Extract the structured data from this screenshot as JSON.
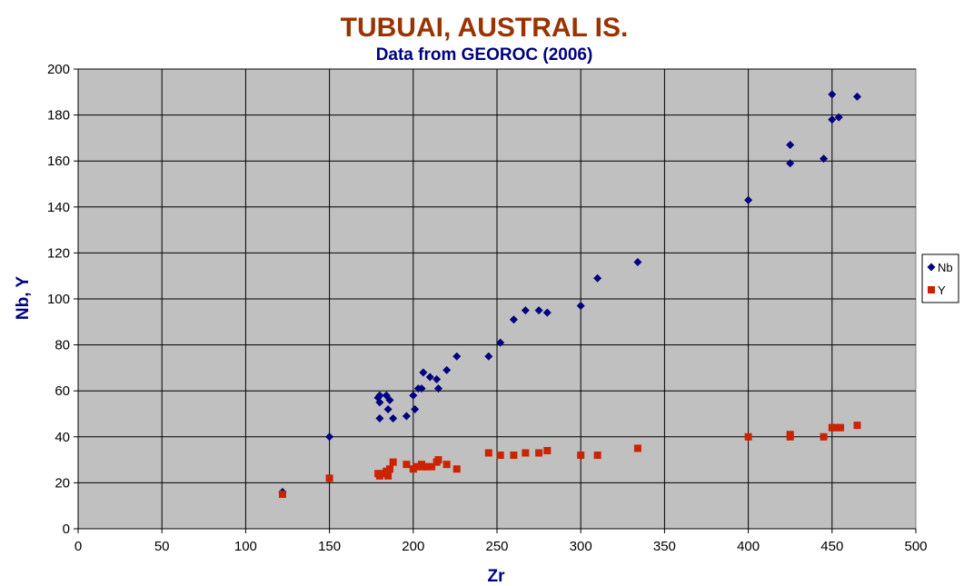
{
  "chart_data": {
    "type": "scatter",
    "title": "TUBUAI,  AUSTRAL IS.",
    "subtitle": "Data from GEOROC (2006)",
    "xlabel": "Zr",
    "ylabel": "Nb, Y",
    "xlim": [
      0,
      500
    ],
    "ylim": [
      0,
      200
    ],
    "x_ticks": [
      0,
      50,
      100,
      150,
      200,
      250,
      300,
      350,
      400,
      450,
      500
    ],
    "y_ticks": [
      0,
      20,
      40,
      60,
      80,
      100,
      120,
      140,
      160,
      180,
      200
    ],
    "grid": true,
    "legend_position": "right",
    "series": [
      {
        "name": "Nb",
        "marker": "diamond",
        "color": "#000080",
        "points": [
          [
            122,
            16
          ],
          [
            150,
            40
          ],
          [
            179,
            57
          ],
          [
            180,
            58
          ],
          [
            180,
            55
          ],
          [
            180,
            48
          ],
          [
            184,
            58
          ],
          [
            185,
            52
          ],
          [
            186,
            56
          ],
          [
            188,
            48
          ],
          [
            196,
            49
          ],
          [
            200,
            58
          ],
          [
            201,
            52
          ],
          [
            203,
            61
          ],
          [
            205,
            61
          ],
          [
            206,
            68
          ],
          [
            210,
            66
          ],
          [
            214,
            65
          ],
          [
            215,
            61
          ],
          [
            220,
            69
          ],
          [
            226,
            75
          ],
          [
            245,
            75
          ],
          [
            252,
            81
          ],
          [
            260,
            91
          ],
          [
            267,
            95
          ],
          [
            275,
            95
          ],
          [
            280,
            94
          ],
          [
            300,
            97
          ],
          [
            310,
            109
          ],
          [
            334,
            116
          ],
          [
            400,
            143
          ],
          [
            425,
            167
          ],
          [
            425,
            159
          ],
          [
            445,
            161
          ],
          [
            450,
            189
          ],
          [
            450,
            178
          ],
          [
            454,
            179
          ],
          [
            465,
            188
          ]
        ]
      },
      {
        "name": "Y",
        "marker": "square",
        "color": "#cc2200",
        "points": [
          [
            122,
            15
          ],
          [
            150,
            22
          ],
          [
            179,
            24
          ],
          [
            180,
            23
          ],
          [
            182,
            24
          ],
          [
            184,
            25
          ],
          [
            185,
            23
          ],
          [
            186,
            26
          ],
          [
            188,
            29
          ],
          [
            196,
            28
          ],
          [
            200,
            26
          ],
          [
            202,
            27
          ],
          [
            205,
            28
          ],
          [
            206,
            27
          ],
          [
            208,
            27
          ],
          [
            211,
            27
          ],
          [
            214,
            29
          ],
          [
            215,
            30
          ],
          [
            220,
            28
          ],
          [
            226,
            26
          ],
          [
            245,
            33
          ],
          [
            252,
            32
          ],
          [
            260,
            32
          ],
          [
            267,
            33
          ],
          [
            275,
            33
          ],
          [
            280,
            34
          ],
          [
            300,
            32
          ],
          [
            310,
            32
          ],
          [
            334,
            35
          ],
          [
            400,
            40
          ],
          [
            425,
            41
          ],
          [
            425,
            40
          ],
          [
            445,
            40
          ],
          [
            450,
            44
          ],
          [
            452,
            44
          ],
          [
            455,
            44
          ],
          [
            465,
            45
          ]
        ]
      }
    ]
  },
  "colors": {
    "plot_background": "#c0c0c0",
    "grid": "#000000",
    "title": "#993300",
    "subtitle": "#000080",
    "axis_title": "#000080"
  }
}
